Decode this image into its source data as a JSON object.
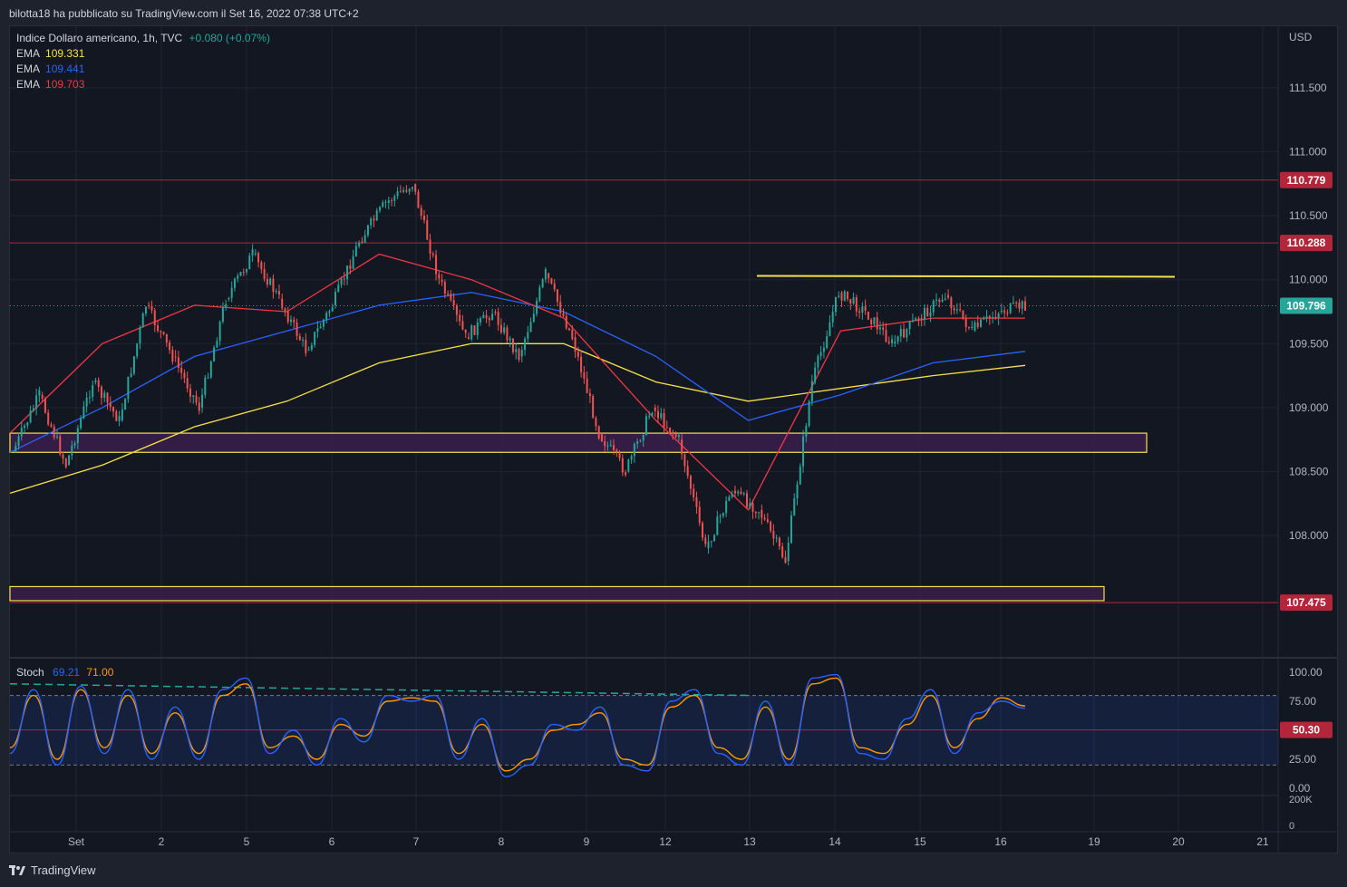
{
  "header": {
    "text": "bilotta18 ha pubblicato su TradingView.com il Set 16, 2022 07:38 UTC+2"
  },
  "footer": {
    "brand": "TradingView"
  },
  "legend": {
    "symbol": "Indice Dollaro americano, 1h, TVC",
    "change": "+0.080 (+0.07%)",
    "emas": [
      {
        "label": "EMA",
        "value": "109.331",
        "color": "#f5e14a"
      },
      {
        "label": "EMA",
        "value": "109.441",
        "color": "#2962ff"
      },
      {
        "label": "EMA",
        "value": "109.703",
        "color": "#f23645"
      }
    ],
    "stoch": {
      "label": "Stoch",
      "k": "69.21",
      "d": "71.00",
      "k_color": "#2962ff",
      "d_color": "#ff9800"
    }
  },
  "colors": {
    "up": "#26a69a",
    "down": "#ef5350",
    "resistance": "#b2263a",
    "zone": "#f5e14a",
    "zone_fill": "#3b1e4a"
  },
  "chart_data": {
    "type": "line",
    "title": "",
    "currency": "USD",
    "price_axis": {
      "ticks": [
        "111.500",
        "111.000",
        "110.500",
        "110.000",
        "109.500",
        "109.000",
        "108.500",
        "108.000"
      ],
      "ylim": [
        107.0,
        111.9
      ]
    },
    "time_axis": {
      "ticks": [
        "Set",
        "2",
        "5",
        "6",
        "7",
        "8",
        "9",
        "12",
        "13",
        "14",
        "15",
        "16",
        "19",
        "20",
        "21"
      ]
    },
    "last_price": "109.796",
    "levels": [
      {
        "value": 110.779,
        "label": "110.779"
      },
      {
        "value": 110.288,
        "label": "110.288"
      },
      {
        "value": 107.475,
        "label": "107.475"
      }
    ],
    "zones": [
      {
        "from": 108.65,
        "to": 108.8,
        "x_start": "Set",
        "x_end": "19"
      },
      {
        "from": 107.49,
        "to": 107.6,
        "x_start": "Set",
        "x_end": "19"
      }
    ],
    "trendline": {
      "value": 110.03,
      "x_start": "13",
      "x_end": "20"
    },
    "price_path": [
      [
        "Set",
        108.65
      ],
      [
        "Set",
        109.1
      ],
      [
        "Set",
        108.55
      ],
      [
        "2",
        109.2
      ],
      [
        "2",
        108.9
      ],
      [
        "2",
        109.8
      ],
      [
        "5",
        109.4
      ],
      [
        "5",
        109.0
      ],
      [
        "5",
        109.85
      ],
      [
        "5",
        110.2
      ],
      [
        "6",
        109.85
      ],
      [
        "6",
        109.45
      ],
      [
        "6",
        109.8
      ],
      [
        "7",
        110.3
      ],
      [
        "7",
        110.6
      ],
      [
        "8",
        110.75
      ],
      [
        "8",
        110.0
      ],
      [
        "8",
        109.55
      ],
      [
        "8",
        109.75
      ],
      [
        "9",
        109.4
      ],
      [
        "9",
        110.05
      ],
      [
        "9",
        109.55
      ],
      [
        "9",
        108.8
      ],
      [
        "12",
        108.5
      ],
      [
        "12",
        109.0
      ],
      [
        "12",
        108.75
      ],
      [
        "13",
        107.9
      ],
      [
        "13",
        108.35
      ],
      [
        "13",
        108.2
      ],
      [
        "13",
        107.8
      ],
      [
        "14",
        109.2
      ],
      [
        "14",
        109.9
      ],
      [
        "14",
        109.75
      ],
      [
        "15",
        109.5
      ],
      [
        "15",
        109.7
      ],
      [
        "15",
        109.88
      ],
      [
        "15",
        109.6
      ],
      [
        "16",
        109.75
      ],
      [
        "16",
        109.8
      ]
    ],
    "ema_slow": [
      [
        "Set",
        108.33
      ],
      [
        "2",
        108.55
      ],
      [
        "5",
        108.85
      ],
      [
        "6",
        109.05
      ],
      [
        "7",
        109.35
      ],
      [
        "8",
        109.5
      ],
      [
        "9",
        109.5
      ],
      [
        "12",
        109.2
      ],
      [
        "13",
        109.05
      ],
      [
        "14",
        109.15
      ],
      [
        "15",
        109.25
      ],
      [
        "16",
        109.33
      ]
    ],
    "ema_mid": [
      [
        "Set",
        108.65
      ],
      [
        "2",
        109.0
      ],
      [
        "5",
        109.4
      ],
      [
        "6",
        109.6
      ],
      [
        "7",
        109.8
      ],
      [
        "8",
        109.9
      ],
      [
        "9",
        109.75
      ],
      [
        "12",
        109.4
      ],
      [
        "13",
        108.9
      ],
      [
        "14",
        109.1
      ],
      [
        "15",
        109.35
      ],
      [
        "16",
        109.44
      ]
    ],
    "ema_fast": [
      [
        "Set",
        108.8
      ],
      [
        "2",
        109.5
      ],
      [
        "5",
        109.8
      ],
      [
        "6",
        109.75
      ],
      [
        "7",
        110.2
      ],
      [
        "8",
        110.0
      ],
      [
        "9",
        109.7
      ],
      [
        "12",
        108.9
      ],
      [
        "13",
        108.2
      ],
      [
        "14",
        109.6
      ],
      [
        "15",
        109.7
      ],
      [
        "16",
        109.7
      ]
    ],
    "stoch_axis": {
      "ticks": [
        "100.00",
        "75.00",
        "25.00",
        "0.00"
      ],
      "mid_label": "50.30",
      "vol_ticks": [
        "200K",
        "0"
      ]
    },
    "stoch_k": [
      30,
      85,
      20,
      88,
      30,
      85,
      25,
      70,
      25,
      85,
      95,
      30,
      50,
      20,
      60,
      40,
      80,
      75,
      80,
      25,
      60,
      10,
      20,
      55,
      50,
      70,
      20,
      15,
      75,
      85,
      30,
      20,
      75,
      20,
      95,
      98,
      30,
      25,
      60,
      85,
      30,
      65,
      75,
      69
    ],
    "stoch_d": [
      35,
      80,
      25,
      85,
      35,
      80,
      30,
      65,
      30,
      80,
      90,
      35,
      45,
      25,
      55,
      45,
      75,
      78,
      75,
      30,
      55,
      15,
      25,
      50,
      55,
      65,
      25,
      20,
      70,
      80,
      35,
      25,
      70,
      25,
      90,
      95,
      35,
      30,
      55,
      80,
      35,
      60,
      78,
      71
    ]
  }
}
